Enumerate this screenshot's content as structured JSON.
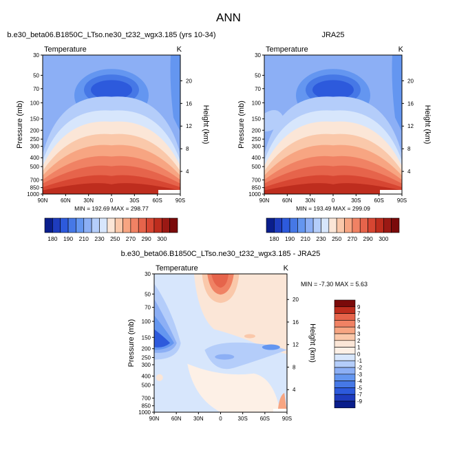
{
  "figure": {
    "title": "ANN"
  },
  "chart_data": [
    {
      "type": "heatmap",
      "title": "b.e30_beta06.B1850C_LTso.ne30_t232_wgx3.185 (yrs 10-34)",
      "variable": "Temperature",
      "units": "K",
      "ylabel": "Pressure (mb)",
      "ylabel_right": "Height (km)",
      "x_ticks": [
        "90N",
        "60N",
        "30N",
        "0",
        "30S",
        "60S",
        "90S"
      ],
      "y_ticks": [
        "30",
        "50",
        "70",
        "100",
        "150",
        "200",
        "250",
        "300",
        "400",
        "500",
        "700",
        "850",
        "1000"
      ],
      "height_ticks": [
        "20",
        "16",
        "12",
        "8",
        "4"
      ],
      "stats": "MIN = 192.69   MAX = 298.77",
      "min": 192.69,
      "max": 298.77,
      "grid": false
    },
    {
      "type": "heatmap",
      "title": "JRA25",
      "variable": "Temperature",
      "units": "K",
      "ylabel": "Pressure (mb)",
      "ylabel_right": "Height (km)",
      "x_ticks": [
        "90N",
        "60N",
        "30N",
        "0",
        "30S",
        "60S",
        "90S"
      ],
      "y_ticks": [
        "30",
        "50",
        "70",
        "100",
        "150",
        "200",
        "250",
        "300",
        "400",
        "500",
        "700",
        "850",
        "1000"
      ],
      "height_ticks": [
        "20",
        "16",
        "12",
        "8",
        "4"
      ],
      "stats": "MIN = 193.49   MAX = 299.09",
      "min": 193.49,
      "max": 299.09,
      "grid": false
    },
    {
      "type": "heatmap",
      "title": "b.e30_beta06.B1850C_LTso.ne30_t232_wgx3.185 - JRA25",
      "variable": "Temperature",
      "units": "K",
      "ylabel": "Pressure (mb)",
      "ylabel_right": "Height (km)",
      "x_ticks": [
        "90N",
        "60N",
        "30N",
        "0",
        "30S",
        "60S",
        "90S"
      ],
      "y_ticks": [
        "30",
        "50",
        "70",
        "100",
        "150",
        "200",
        "250",
        "300",
        "400",
        "500",
        "700",
        "850",
        "1000"
      ],
      "height_ticks": [
        "20",
        "16",
        "12",
        "8",
        "4"
      ],
      "stats": "MIN = -7.30   MAX =  5.63",
      "min": -7.3,
      "max": 5.63,
      "grid": false
    }
  ],
  "temp_colorbar": {
    "labels": [
      "180",
      "190",
      "210",
      "230",
      "250",
      "270",
      "290",
      "300"
    ],
    "colors": [
      "#0a1e8c",
      "#1e3cbe",
      "#2d5adc",
      "#4678e6",
      "#6496f0",
      "#8caff5",
      "#b4cdfa",
      "#d7e6fc",
      "#fbe6d7",
      "#fac8aa",
      "#f7a582",
      "#f08264",
      "#e6644b",
      "#d74632",
      "#be2d1e",
      "#9b1914",
      "#7a0a0a"
    ]
  },
  "diff_colorbar": {
    "labels": [
      "9",
      "7",
      "5",
      "4",
      "3",
      "2",
      "1",
      "0",
      "-1",
      "-2",
      "-3",
      "-4",
      "-5",
      "-7",
      "-9"
    ],
    "colors": [
      "#7a0a0a",
      "#be2d1e",
      "#e6644b",
      "#f08264",
      "#f7a582",
      "#fac8aa",
      "#fbe6d7",
      "#fdf0e6",
      "#d7e6fc",
      "#b4cdfa",
      "#8caff5",
      "#6496f0",
      "#4678e6",
      "#2d5adc",
      "#1e3cbe",
      "#0a1e8c"
    ]
  }
}
